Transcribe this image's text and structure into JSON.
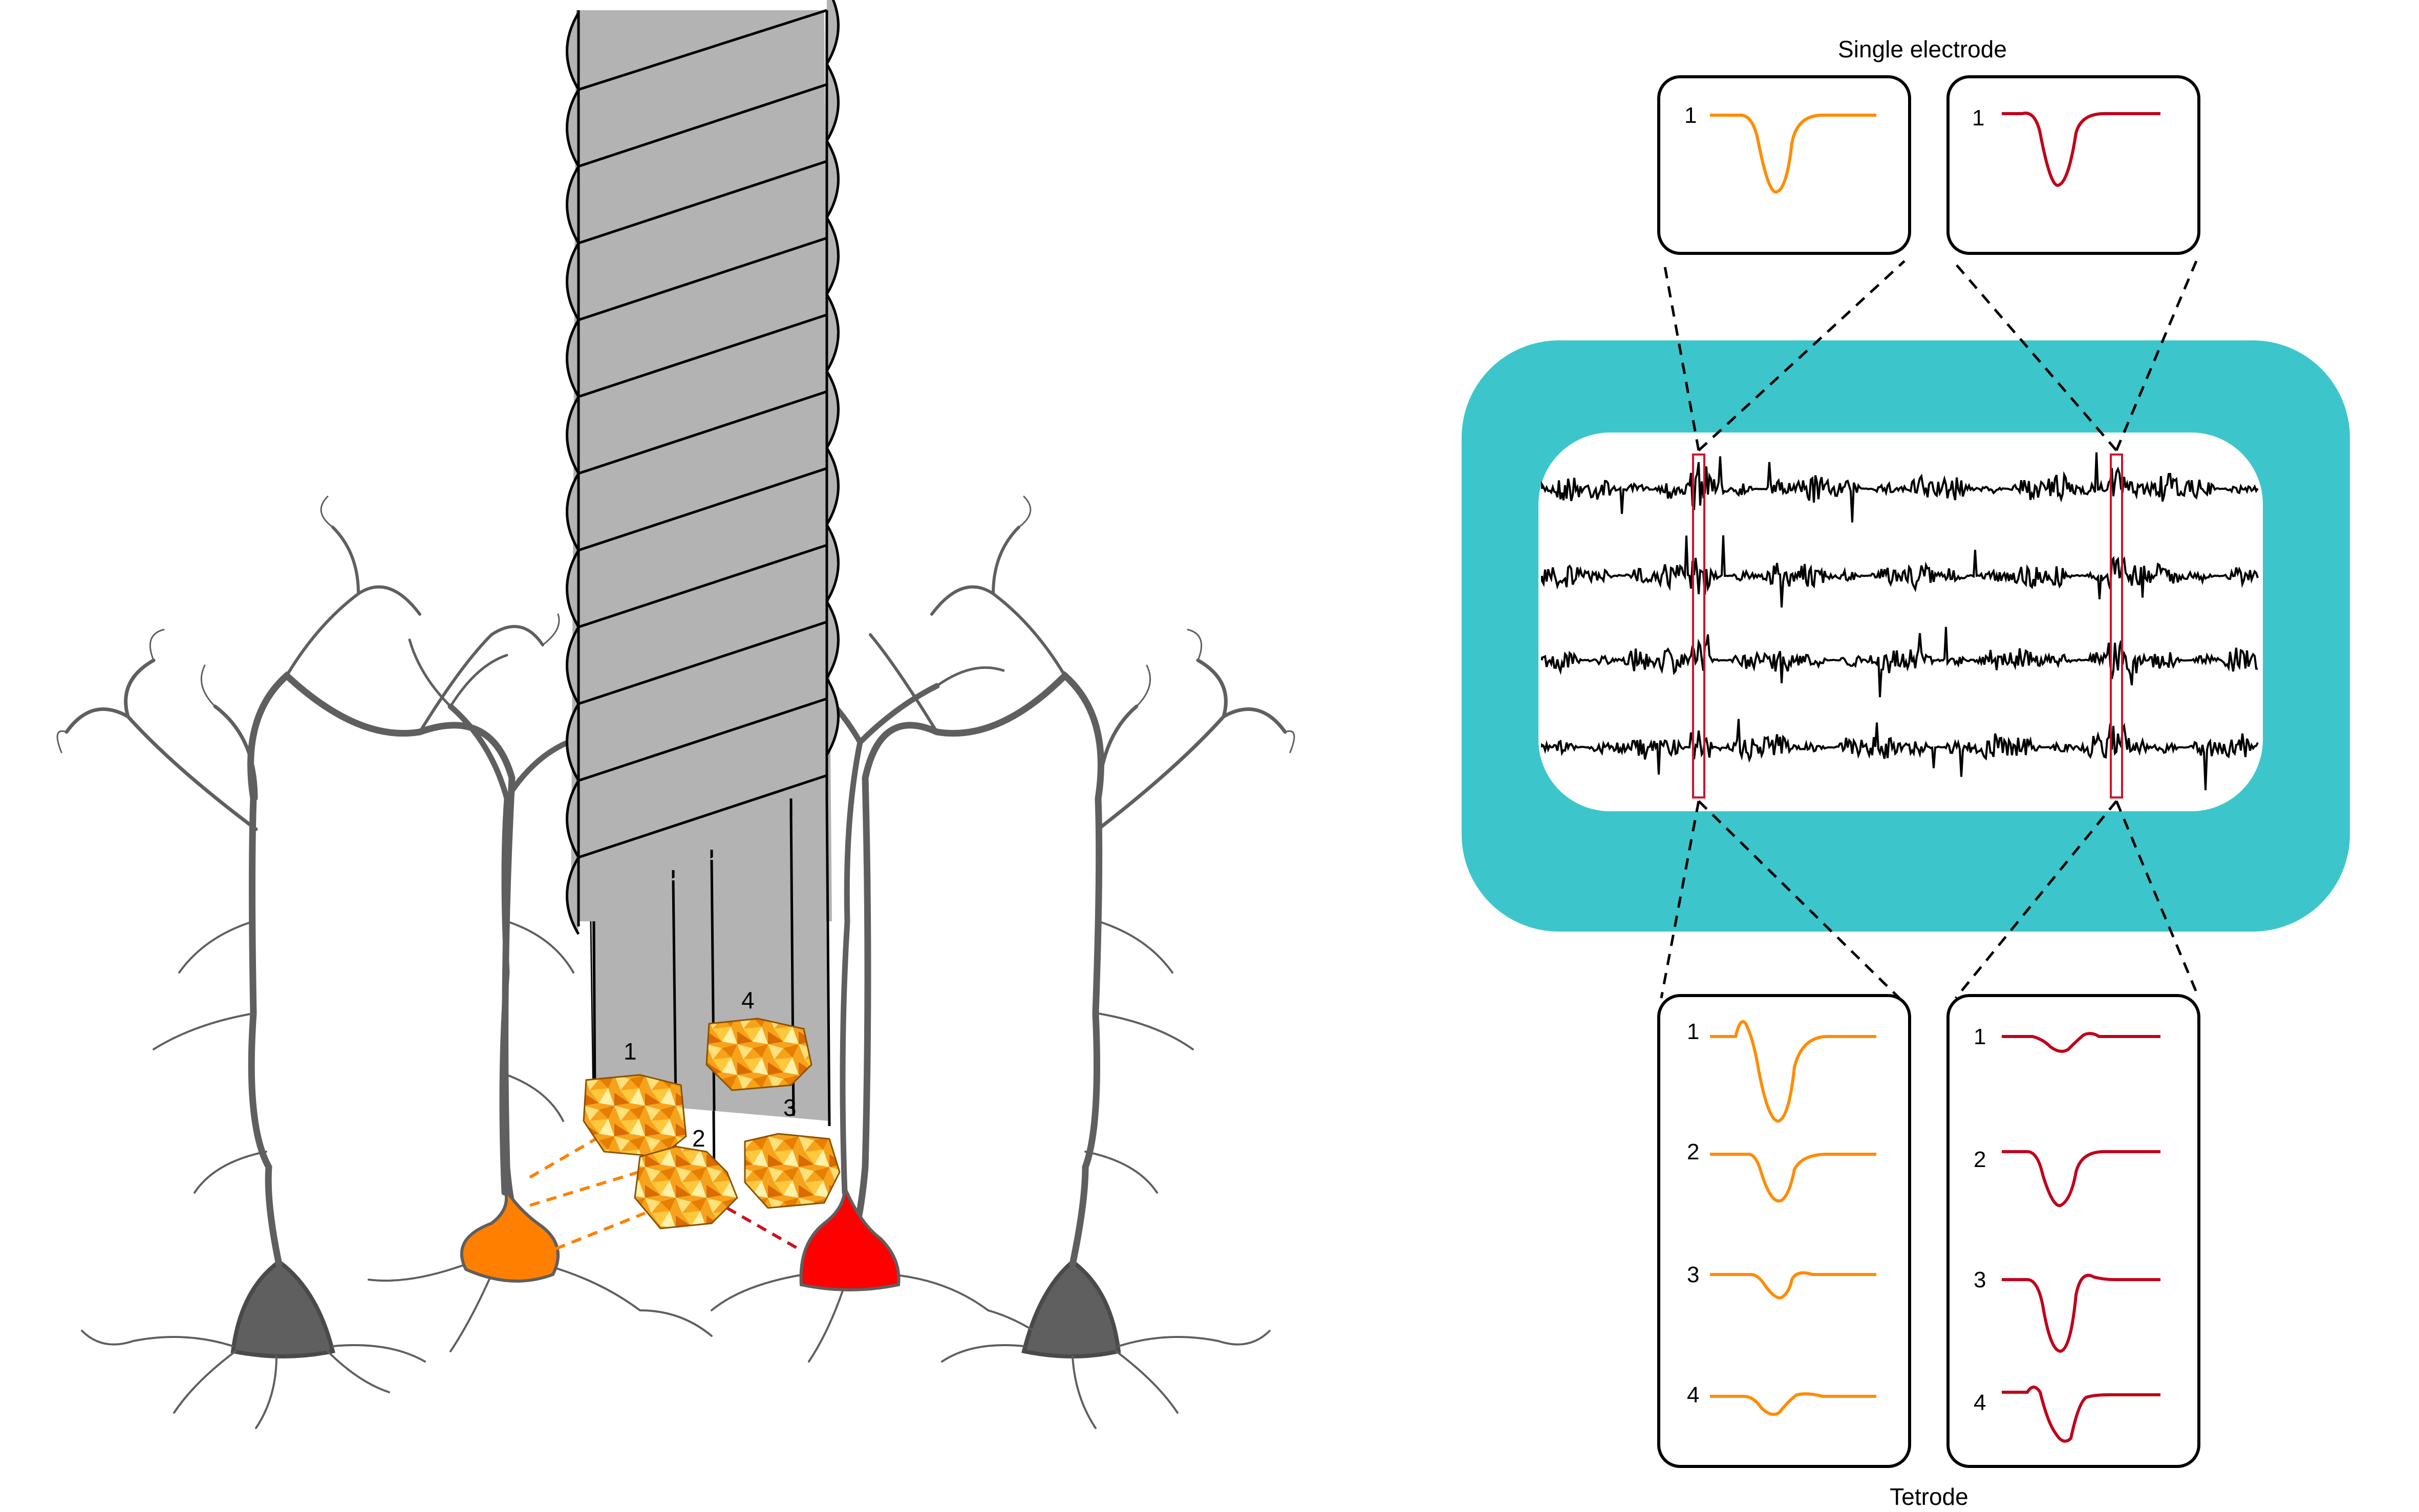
{
  "labels": {
    "single_electrode": "Single electrode",
    "tetrode": "Tetrode"
  },
  "wire_labels": [
    "1",
    "2",
    "3",
    "4"
  ],
  "single_panels": [
    {
      "channel": "1"
    },
    {
      "channel": "1"
    }
  ],
  "tetrode_panels": [
    {
      "channels": [
        "1",
        "2",
        "3",
        "4"
      ]
    },
    {
      "channels": [
        "1",
        "2",
        "3",
        "4"
      ]
    }
  ],
  "colors": {
    "orange_neuron": "#FF8000",
    "red_neuron": "#FF0000",
    "orange_waveform": "#FF8C00",
    "red_waveform": "#C0001A",
    "teal_frame": "#3CC6CB",
    "tetrode_gray": "#B3B3B3",
    "neuron_gray": "#5F5F5F"
  },
  "icons": {
    "tetrode_bundle": "twisted-wire-bundle",
    "neuron_orange": "pyramidal-neuron-soma",
    "neuron_red": "pyramidal-neuron-soma",
    "recording_traces": "extracellular-voltage-traces"
  }
}
